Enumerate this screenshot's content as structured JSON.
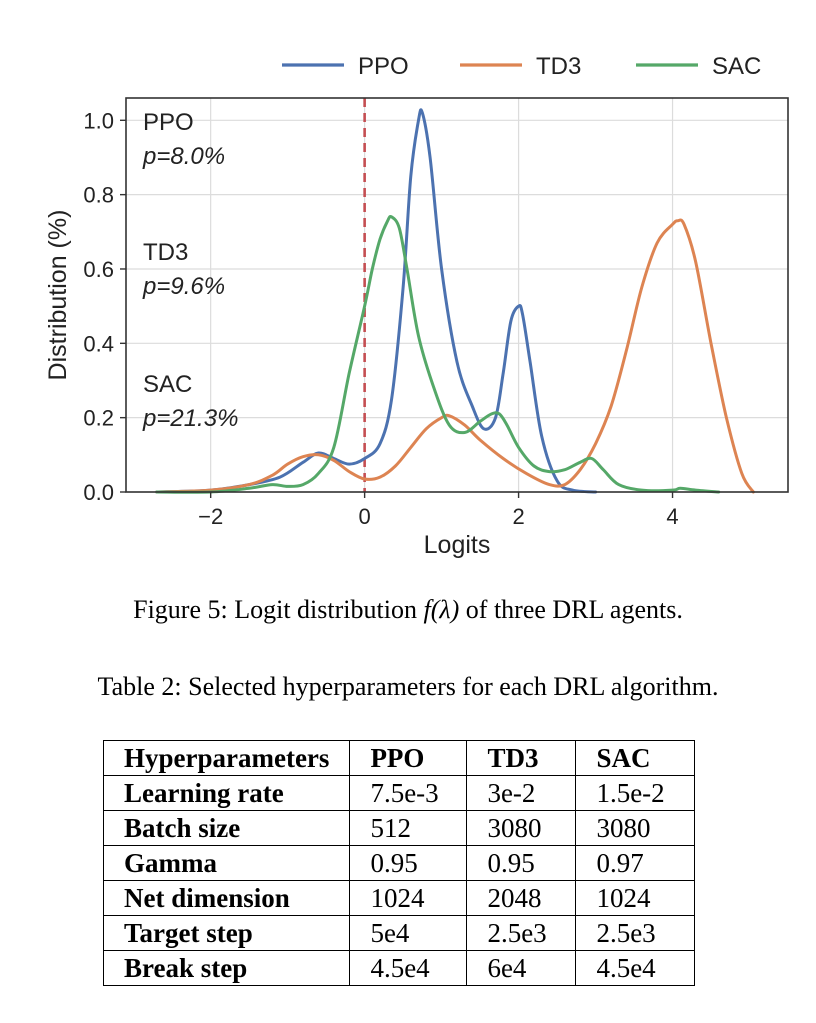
{
  "figure": {
    "caption_prefix": "Figure 5: Logit distribution ",
    "caption_math": "f(λ)",
    "caption_suffix": " of three DRL agents.",
    "chart_data": {
      "type": "line",
      "title": "",
      "xlabel": "Logits",
      "ylabel": "Distribution (%)",
      "xlim": [
        -3.1,
        5.5
      ],
      "ylim": [
        0.0,
        1.06
      ],
      "xticks": [
        -2,
        0,
        2,
        4
      ],
      "xtick_labels": [
        "−2",
        "0",
        "2",
        "4"
      ],
      "yticks": [
        0.0,
        0.2,
        0.4,
        0.6,
        0.8,
        1.0
      ],
      "ytick_labels": [
        "0.0",
        "0.2",
        "0.4",
        "0.6",
        "0.8",
        "1.0"
      ],
      "grid": true,
      "legend_position": "top-center",
      "reference_line": {
        "x": 0,
        "style": "dashed",
        "color": "#c44e52"
      },
      "series": [
        {
          "name": "PPO",
          "color": "#4c72b0",
          "x": [
            -2.7,
            -2.0,
            -1.5,
            -1.1,
            -0.8,
            -0.6,
            -0.4,
            -0.2,
            0.0,
            0.2,
            0.35,
            0.5,
            0.6,
            0.7,
            0.75,
            0.85,
            1.0,
            1.2,
            1.4,
            1.55,
            1.7,
            1.8,
            1.9,
            2.0,
            2.05,
            2.15,
            2.3,
            2.5,
            2.7,
            3.0
          ],
          "y": [
            0.0,
            0.005,
            0.02,
            0.04,
            0.08,
            0.105,
            0.09,
            0.075,
            0.09,
            0.13,
            0.25,
            0.55,
            0.85,
            1.0,
            1.02,
            0.9,
            0.6,
            0.35,
            0.23,
            0.17,
            0.2,
            0.32,
            0.46,
            0.5,
            0.48,
            0.35,
            0.15,
            0.03,
            0.005,
            0.0
          ]
        },
        {
          "name": "TD3",
          "color": "#dd8452",
          "x": [
            -2.7,
            -2.0,
            -1.5,
            -1.2,
            -1.0,
            -0.8,
            -0.6,
            -0.4,
            -0.2,
            0.0,
            0.2,
            0.4,
            0.6,
            0.8,
            1.0,
            1.1,
            1.3,
            1.5,
            1.8,
            2.1,
            2.4,
            2.6,
            2.8,
            3.0,
            3.2,
            3.4,
            3.6,
            3.8,
            4.0,
            4.07,
            4.15,
            4.3,
            4.5,
            4.7,
            4.9,
            5.05
          ],
          "y": [
            0.0,
            0.005,
            0.02,
            0.045,
            0.075,
            0.095,
            0.1,
            0.085,
            0.055,
            0.035,
            0.04,
            0.07,
            0.12,
            0.17,
            0.2,
            0.205,
            0.18,
            0.14,
            0.09,
            0.05,
            0.02,
            0.02,
            0.06,
            0.13,
            0.23,
            0.38,
            0.55,
            0.67,
            0.72,
            0.73,
            0.72,
            0.62,
            0.4,
            0.2,
            0.05,
            0.0
          ]
        },
        {
          "name": "SAC",
          "color": "#55a868",
          "x": [
            -2.7,
            -2.0,
            -1.5,
            -1.2,
            -1.0,
            -0.8,
            -0.6,
            -0.4,
            -0.2,
            0.0,
            0.1,
            0.2,
            0.3,
            0.35,
            0.45,
            0.55,
            0.7,
            0.9,
            1.1,
            1.3,
            1.5,
            1.65,
            1.75,
            1.85,
            2.0,
            2.2,
            2.4,
            2.6,
            2.8,
            2.95,
            3.1,
            3.3,
            3.6,
            4.0,
            4.1,
            4.3,
            4.6
          ],
          "y": [
            0.0,
            0.0,
            0.01,
            0.02,
            0.015,
            0.02,
            0.05,
            0.12,
            0.32,
            0.5,
            0.6,
            0.68,
            0.73,
            0.74,
            0.71,
            0.6,
            0.42,
            0.28,
            0.18,
            0.16,
            0.19,
            0.21,
            0.21,
            0.18,
            0.12,
            0.07,
            0.055,
            0.06,
            0.08,
            0.09,
            0.06,
            0.02,
            0.005,
            0.005,
            0.01,
            0.005,
            0.0
          ]
        }
      ],
      "annotations": [
        {
          "label": "PPO",
          "value": "p=8.0%"
        },
        {
          "label": "TD3",
          "value": "p=9.6%"
        },
        {
          "label": "SAC",
          "value": "p=21.3%"
        }
      ]
    }
  },
  "table": {
    "caption": "Table 2: Selected hyperparameters for each DRL algorithm.",
    "headers": [
      "Hyperparameters",
      "PPO",
      "TD3",
      "SAC"
    ],
    "rows": [
      [
        "Learning rate",
        "7.5e-3",
        "3e-2",
        "1.5e-2"
      ],
      [
        "Batch size",
        "512",
        "3080",
        "3080"
      ],
      [
        "Gamma",
        "0.95",
        "0.95",
        "0.97"
      ],
      [
        "Net dimension",
        "1024",
        "2048",
        "1024"
      ],
      [
        "Target step",
        "5e4",
        "2.5e3",
        "2.5e3"
      ],
      [
        "Break step",
        "4.5e4",
        "6e4",
        "4.5e4"
      ]
    ]
  }
}
